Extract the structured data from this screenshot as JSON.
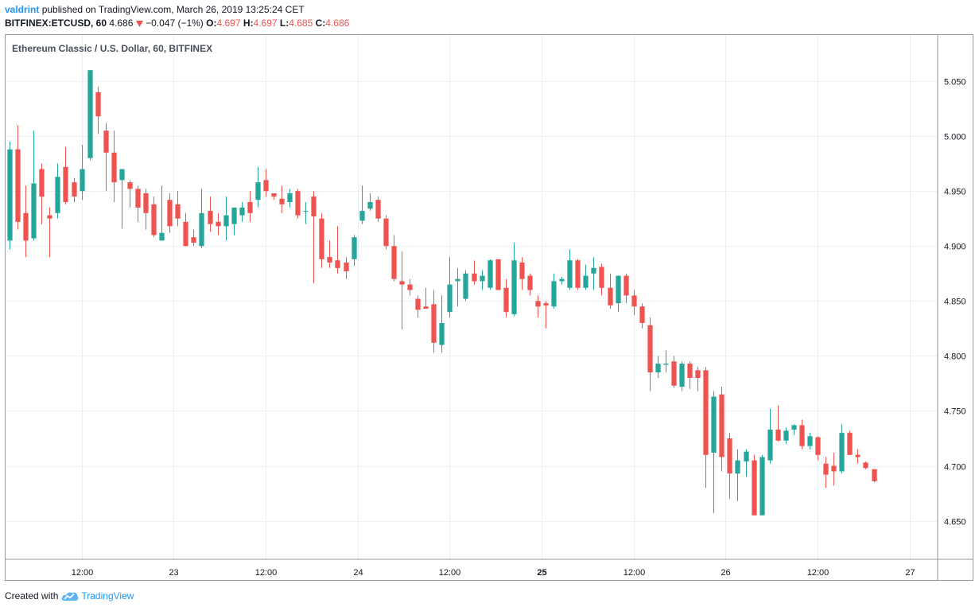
{
  "header": {
    "author": "valdrint",
    "published_text": "published on TradingView.com, March 26, 2019 13:25:24 CET",
    "symbol": "BITFINEX:ETCUSD, 60",
    "last": "4.686",
    "change_arrow_icon": "triangle-down-icon",
    "change": "−0.047 (−1%)",
    "o_label": "O:",
    "o_value": "4.697",
    "h_label": "H:",
    "h_value": "4.697",
    "l_label": "L:",
    "l_value": "4.685",
    "c_label": "C:",
    "c_value": "4.686"
  },
  "footer": {
    "created_with": "Created with",
    "brand": "TradingView",
    "logo_icon": "tradingview-cloud-icon"
  },
  "colors": {
    "up": "#26a69a",
    "down": "#ef5350",
    "grid": "#e9f1f7",
    "text": "#131722",
    "link": "#2196f3"
  },
  "chart_data": {
    "type": "candlestick",
    "title": "Ethereum Classic / U.S. Dollar, 60, BITFINEX",
    "ylim": [
      4.615,
      5.092
    ],
    "y_ticks": [
      5.05,
      5.0,
      4.95,
      4.9,
      4.85,
      4.8,
      4.75,
      4.7,
      4.65
    ],
    "y_tick_labels": [
      "5.050",
      "5.000",
      "4.950",
      "4.900",
      "4.850",
      "4.800",
      "4.750",
      "4.700",
      "4.650"
    ],
    "x_ticks": [
      {
        "label": "12:00",
        "bar": 9
      },
      {
        "label": "23",
        "bar": 20.5
      },
      {
        "label": "12:00",
        "bar": 32
      },
      {
        "label": "24",
        "bar": 43.5
      },
      {
        "label": "12:00",
        "bar": 55
      },
      {
        "label": "25",
        "bar": 66.5,
        "bold": true
      },
      {
        "label": "12:00",
        "bar": 78
      },
      {
        "label": "26",
        "bar": 89.5
      },
      {
        "label": "12:00",
        "bar": 101
      },
      {
        "label": "27",
        "bar": 112.5
      }
    ],
    "bars_visible": 116.5,
    "grid": true,
    "candles": [
      {
        "o": 4.905,
        "h": 4.995,
        "l": 4.897,
        "c": 4.988
      },
      {
        "o": 4.988,
        "h": 5.01,
        "l": 4.915,
        "c": 4.922
      },
      {
        "o": 4.93,
        "h": 4.955,
        "l": 4.89,
        "c": 4.905
      },
      {
        "o": 4.907,
        "h": 5.005,
        "l": 4.905,
        "c": 4.957
      },
      {
        "o": 4.97,
        "h": 4.975,
        "l": 4.92,
        "c": 4.945
      },
      {
        "o": 4.928,
        "h": 4.935,
        "l": 4.89,
        "c": 4.925
      },
      {
        "o": 4.93,
        "h": 4.975,
        "l": 4.925,
        "c": 4.963
      },
      {
        "o": 4.972,
        "h": 4.99,
        "l": 4.938,
        "c": 4.94
      },
      {
        "o": 4.958,
        "h": 4.962,
        "l": 4.94,
        "c": 4.945
      },
      {
        "o": 4.95,
        "h": 4.992,
        "l": 4.942,
        "c": 4.97
      },
      {
        "o": 4.98,
        "h": 5.06,
        "l": 4.978,
        "c": 5.06
      },
      {
        "o": 5.04,
        "h": 5.045,
        "l": 5.002,
        "c": 5.018
      },
      {
        "o": 5.005,
        "h": 5.012,
        "l": 4.95,
        "c": 4.985
      },
      {
        "o": 4.985,
        "h": 5.005,
        "l": 4.94,
        "c": 4.958
      },
      {
        "o": 4.96,
        "h": 4.97,
        "l": 4.916,
        "c": 4.97
      },
      {
        "o": 4.958,
        "h": 4.96,
        "l": 4.935,
        "c": 4.952
      },
      {
        "o": 4.952,
        "h": 4.955,
        "l": 4.922,
        "c": 4.935
      },
      {
        "o": 4.948,
        "h": 4.952,
        "l": 4.915,
        "c": 4.93
      },
      {
        "o": 4.938,
        "h": 4.945,
        "l": 4.908,
        "c": 4.91
      },
      {
        "o": 4.905,
        "h": 4.955,
        "l": 4.905,
        "c": 4.912
      },
      {
        "o": 4.942,
        "h": 4.948,
        "l": 4.912,
        "c": 4.918
      },
      {
        "o": 4.938,
        "h": 4.95,
        "l": 4.918,
        "c": 4.925
      },
      {
        "o": 4.922,
        "h": 4.93,
        "l": 4.9,
        "c": 4.9
      },
      {
        "o": 4.908,
        "h": 4.915,
        "l": 4.9,
        "c": 4.903
      },
      {
        "o": 4.9,
        "h": 4.952,
        "l": 4.898,
        "c": 4.93
      },
      {
        "o": 4.932,
        "h": 4.945,
        "l": 4.913,
        "c": 4.92
      },
      {
        "o": 4.922,
        "h": 4.93,
        "l": 4.91,
        "c": 4.918
      },
      {
        "o": 4.918,
        "h": 4.945,
        "l": 4.905,
        "c": 4.928
      },
      {
        "o": 4.92,
        "h": 4.935,
        "l": 4.91,
        "c": 4.935
      },
      {
        "o": 4.928,
        "h": 4.94,
        "l": 4.922,
        "c": 4.935
      },
      {
        "o": 4.94,
        "h": 4.95,
        "l": 4.922,
        "c": 4.93
      },
      {
        "o": 4.942,
        "h": 4.972,
        "l": 4.935,
        "c": 4.958
      },
      {
        "o": 4.96,
        "h": 4.97,
        "l": 4.945,
        "c": 4.95
      },
      {
        "o": 4.948,
        "h": 4.948,
        "l": 4.942,
        "c": 4.945
      },
      {
        "o": 4.943,
        "h": 4.955,
        "l": 4.93,
        "c": 4.938
      },
      {
        "o": 4.94,
        "h": 4.952,
        "l": 4.935,
        "c": 4.948
      },
      {
        "o": 4.95,
        "h": 4.952,
        "l": 4.925,
        "c": 4.928
      },
      {
        "o": 4.932,
        "h": 4.94,
        "l": 4.92,
        "c": 4.932
      },
      {
        "o": 4.945,
        "h": 4.95,
        "l": 4.866,
        "c": 4.927
      },
      {
        "o": 4.925,
        "h": 4.93,
        "l": 4.88,
        "c": 4.888
      },
      {
        "o": 4.89,
        "h": 4.905,
        "l": 4.88,
        "c": 4.885
      },
      {
        "o": 4.887,
        "h": 4.918,
        "l": 4.875,
        "c": 4.88
      },
      {
        "o": 4.885,
        "h": 4.89,
        "l": 4.87,
        "c": 4.877
      },
      {
        "o": 4.888,
        "h": 4.91,
        "l": 4.882,
        "c": 4.908
      },
      {
        "o": 4.923,
        "h": 4.955,
        "l": 4.92,
        "c": 4.932
      },
      {
        "o": 4.934,
        "h": 4.948,
        "l": 4.932,
        "c": 4.94
      },
      {
        "o": 4.942,
        "h": 4.945,
        "l": 4.922,
        "c": 4.925
      },
      {
        "o": 4.925,
        "h": 4.928,
        "l": 4.897,
        "c": 4.9
      },
      {
        "o": 4.9,
        "h": 4.91,
        "l": 4.868,
        "c": 4.87
      },
      {
        "o": 4.868,
        "h": 4.895,
        "l": 4.824,
        "c": 4.865
      },
      {
        "o": 4.865,
        "h": 4.87,
        "l": 4.855,
        "c": 4.86
      },
      {
        "o": 4.852,
        "h": 4.855,
        "l": 4.835,
        "c": 4.842
      },
      {
        "o": 4.845,
        "h": 4.862,
        "l": 4.843,
        "c": 4.843
      },
      {
        "o": 4.847,
        "h": 4.86,
        "l": 4.803,
        "c": 4.812
      },
      {
        "o": 4.81,
        "h": 4.855,
        "l": 4.803,
        "c": 4.83
      },
      {
        "o": 4.84,
        "h": 4.89,
        "l": 4.835,
        "c": 4.865
      },
      {
        "o": 4.868,
        "h": 4.88,
        "l": 4.845,
        "c": 4.87
      },
      {
        "o": 4.852,
        "h": 4.878,
        "l": 4.85,
        "c": 4.875
      },
      {
        "o": 4.875,
        "h": 4.887,
        "l": 4.865,
        "c": 4.868
      },
      {
        "o": 4.868,
        "h": 4.878,
        "l": 4.86,
        "c": 4.873
      },
      {
        "o": 4.862,
        "h": 4.888,
        "l": 4.86,
        "c": 4.887
      },
      {
        "o": 4.888,
        "h": 4.888,
        "l": 4.86,
        "c": 4.86
      },
      {
        "o": 4.862,
        "h": 4.87,
        "l": 4.835,
        "c": 4.84
      },
      {
        "o": 4.838,
        "h": 4.903,
        "l": 4.836,
        "c": 4.887
      },
      {
        "o": 4.885,
        "h": 4.89,
        "l": 4.86,
        "c": 4.87
      },
      {
        "o": 4.873,
        "h": 4.875,
        "l": 4.855,
        "c": 4.86
      },
      {
        "o": 4.85,
        "h": 4.855,
        "l": 4.835,
        "c": 4.845
      },
      {
        "o": 4.848,
        "h": 4.85,
        "l": 4.825,
        "c": 4.846
      },
      {
        "o": 4.845,
        "h": 4.875,
        "l": 4.843,
        "c": 4.868
      },
      {
        "o": 4.868,
        "h": 4.872,
        "l": 4.865,
        "c": 4.87
      },
      {
        "o": 4.862,
        "h": 4.897,
        "l": 4.86,
        "c": 4.887
      },
      {
        "o": 4.887,
        "h": 4.888,
        "l": 4.86,
        "c": 4.862
      },
      {
        "o": 4.862,
        "h": 4.883,
        "l": 4.86,
        "c": 4.873
      },
      {
        "o": 4.875,
        "h": 4.89,
        "l": 4.86,
        "c": 4.88
      },
      {
        "o": 4.881,
        "h": 4.884,
        "l": 4.855,
        "c": 4.862
      },
      {
        "o": 4.862,
        "h": 4.875,
        "l": 4.843,
        "c": 4.846
      },
      {
        "o": 4.848,
        "h": 4.87,
        "l": 4.84,
        "c": 4.873
      },
      {
        "o": 4.873,
        "h": 4.875,
        "l": 4.848,
        "c": 4.855
      },
      {
        "o": 4.855,
        "h": 4.86,
        "l": 4.837,
        "c": 4.845
      },
      {
        "o": 4.845,
        "h": 4.848,
        "l": 4.825,
        "c": 4.83
      },
      {
        "o": 4.828,
        "h": 4.835,
        "l": 4.768,
        "c": 4.785
      },
      {
        "o": 4.785,
        "h": 4.8,
        "l": 4.78,
        "c": 4.793
      },
      {
        "o": 4.792,
        "h": 4.805,
        "l": 4.785,
        "c": 4.793
      },
      {
        "o": 4.795,
        "h": 4.8,
        "l": 4.771,
        "c": 4.773
      },
      {
        "o": 4.772,
        "h": 4.795,
        "l": 4.768,
        "c": 4.793
      },
      {
        "o": 4.793,
        "h": 4.795,
        "l": 4.77,
        "c": 4.78
      },
      {
        "o": 4.787,
        "h": 4.79,
        "l": 4.768,
        "c": 4.78
      },
      {
        "o": 4.787,
        "h": 4.79,
        "l": 4.68,
        "c": 4.71
      },
      {
        "o": 4.712,
        "h": 4.768,
        "l": 4.657,
        "c": 4.763
      },
      {
        "o": 4.765,
        "h": 4.772,
        "l": 4.695,
        "c": 4.708
      },
      {
        "o": 4.725,
        "h": 4.73,
        "l": 4.67,
        "c": 4.693
      },
      {
        "o": 4.693,
        "h": 4.715,
        "l": 4.668,
        "c": 4.705
      },
      {
        "o": 4.704,
        "h": 4.715,
        "l": 4.69,
        "c": 4.713
      },
      {
        "o": 4.705,
        "h": 4.71,
        "l": 4.655,
        "c": 4.655
      },
      {
        "o": 4.655,
        "h": 4.71,
        "l": 4.655,
        "c": 4.708
      },
      {
        "o": 4.705,
        "h": 4.752,
        "l": 4.702,
        "c": 4.733
      },
      {
        "o": 4.733,
        "h": 4.755,
        "l": 4.722,
        "c": 4.723
      },
      {
        "o": 4.723,
        "h": 4.735,
        "l": 4.72,
        "c": 4.732
      },
      {
        "o": 4.733,
        "h": 4.738,
        "l": 4.728,
        "c": 4.737
      },
      {
        "o": 4.737,
        "h": 4.742,
        "l": 4.715,
        "c": 4.718
      },
      {
        "o": 4.718,
        "h": 4.73,
        "l": 4.715,
        "c": 4.727
      },
      {
        "o": 4.726,
        "h": 4.727,
        "l": 4.705,
        "c": 4.71
      },
      {
        "o": 4.702,
        "h": 4.708,
        "l": 4.68,
        "c": 4.692
      },
      {
        "o": 4.7,
        "h": 4.712,
        "l": 4.682,
        "c": 4.695
      },
      {
        "o": 4.695,
        "h": 4.738,
        "l": 4.693,
        "c": 4.73
      },
      {
        "o": 4.73,
        "h": 4.732,
        "l": 4.71,
        "c": 4.71
      },
      {
        "o": 4.71,
        "h": 4.715,
        "l": 4.702,
        "c": 4.708
      },
      {
        "o": 4.703,
        "h": 4.704,
        "l": 4.697,
        "c": 4.698
      },
      {
        "o": 4.697,
        "h": 4.697,
        "l": 4.685,
        "c": 4.686
      }
    ]
  }
}
